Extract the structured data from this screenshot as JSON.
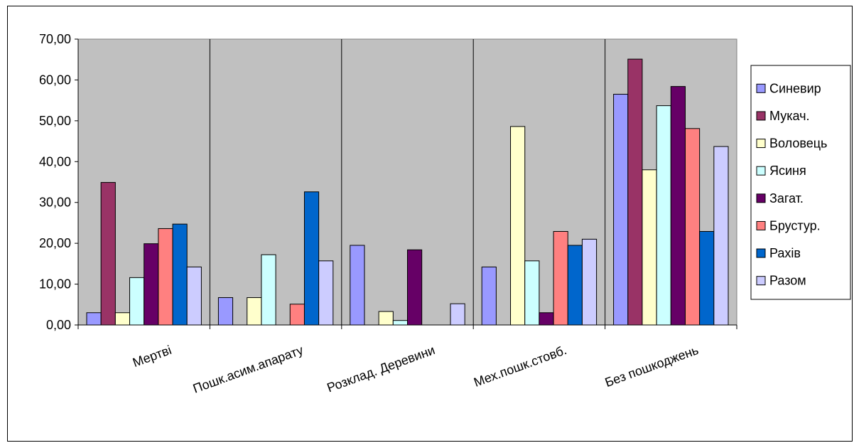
{
  "chart_data": {
    "type": "bar",
    "title": "",
    "xlabel": "",
    "ylabel": "",
    "ylim": [
      0,
      70
    ],
    "yticks": [
      "0,00",
      "10,00",
      "20,00",
      "30,00",
      "40,00",
      "50,00",
      "60,00",
      "70,00"
    ],
    "grid": true,
    "legend_position": "right",
    "categories": [
      "Мертві",
      "Пошк.асим.апарату",
      "Розклад. Деревини",
      "Мех.пошк.стовб.",
      "Без пошкоджень"
    ],
    "series": [
      {
        "name": "Синевир",
        "color": "#9999ff",
        "values": [
          3.0,
          6.7,
          19.5,
          14.2,
          56.5
        ]
      },
      {
        "name": "Мукач.",
        "color": "#993366",
        "values": [
          34.9,
          0,
          0,
          0,
          65.1
        ]
      },
      {
        "name": "Воловець",
        "color": "#ffffcc",
        "values": [
          3.0,
          6.7,
          3.3,
          48.6,
          38.0
        ]
      },
      {
        "name": "Ясиня",
        "color": "#ccffff",
        "values": [
          11.6,
          17.2,
          1.1,
          15.7,
          53.7
        ]
      },
      {
        "name": "Загат.",
        "color": "#660066",
        "values": [
          19.9,
          0,
          18.4,
          3.0,
          58.4
        ]
      },
      {
        "name": "Брустур.",
        "color": "#ff8080",
        "values": [
          23.6,
          5.1,
          0,
          22.9,
          48.1
        ]
      },
      {
        "name": "Рахів",
        "color": "#0066cc",
        "values": [
          24.7,
          32.6,
          0,
          19.5,
          22.9
        ]
      },
      {
        "name": "Разом",
        "color": "#ccccff",
        "values": [
          14.2,
          15.7,
          5.2,
          21.0,
          43.7
        ]
      }
    ]
  }
}
